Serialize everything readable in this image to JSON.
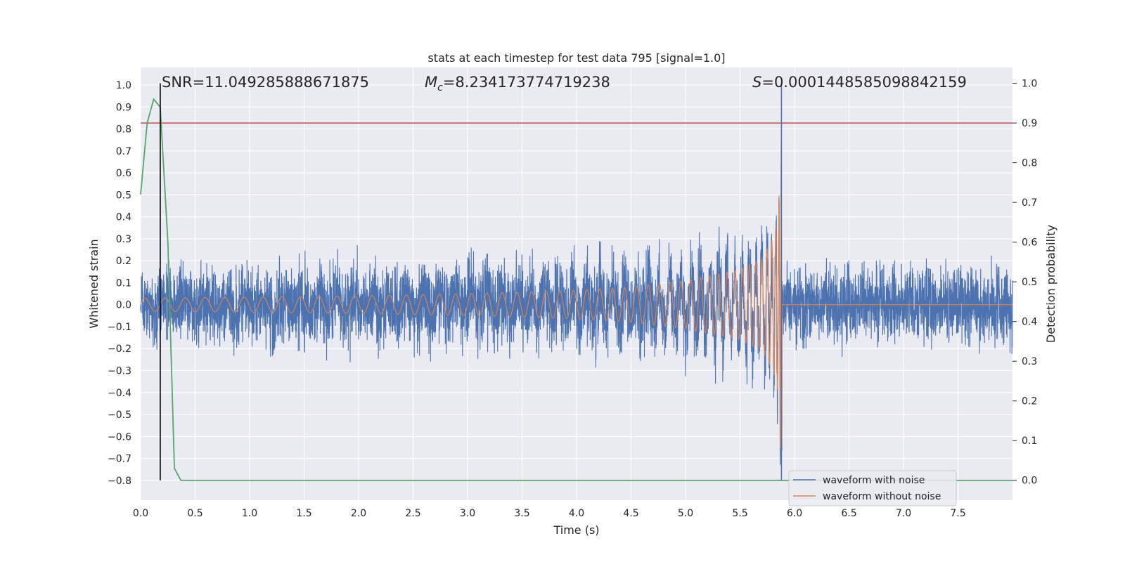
{
  "chart_data": {
    "type": "line",
    "title": "stats at each timestep for test data 795 [signal=1.0]",
    "xlabel": "Time (s)",
    "ylabel_left": "Whitened strain",
    "ylabel_right": "Detection probability",
    "xlim": [
      0.0,
      8.0
    ],
    "ylim_left": [
      -0.89,
      1.08
    ],
    "ylim_right": [
      -0.05,
      1.04
    ],
    "x_ticks": [
      "0.0",
      "0.5",
      "1.0",
      "1.5",
      "2.0",
      "2.5",
      "3.0",
      "3.5",
      "4.0",
      "4.5",
      "5.0",
      "5.5",
      "6.0",
      "6.5",
      "7.0",
      "7.5"
    ],
    "y_left_ticks": [
      "1.0",
      "0.9",
      "0.8",
      "0.7",
      "0.6",
      "0.5",
      "0.4",
      "0.3",
      "0.2",
      "0.1",
      "0.0",
      "−0.1",
      "−0.2",
      "−0.3",
      "−0.4",
      "−0.5",
      "−0.6",
      "−0.7",
      "−0.8"
    ],
    "y_right_ticks": [
      "1.0",
      "0.9",
      "0.8",
      "0.7",
      "0.6",
      "0.5",
      "0.4",
      "0.3",
      "0.2",
      "0.1",
      "0.0"
    ],
    "grid": true,
    "legend_position": "bottom-right",
    "annotations": {
      "snr": "SNR=11.049285888671875",
      "mc_symbol": "M",
      "mc_sub": "c",
      "mc_value": "=8.234173774719238",
      "s_symbol": "S",
      "s_value": "=0.0001448585098842159"
    },
    "series": [
      {
        "name": "waveform with noise",
        "axis": "left",
        "color": "#4c72b0",
        "description_envelope": {
          "x": [
            0.0,
            1.0,
            2.0,
            3.0,
            4.0,
            5.0,
            5.5,
            5.8,
            5.88,
            5.9,
            6.5,
            7.0,
            8.0
          ],
          "noise_band": [
            0.24,
            0.25,
            0.26,
            0.27,
            0.28,
            0.29,
            0.3,
            0.3,
            0.3,
            0.25,
            0.25,
            0.25,
            0.25
          ],
          "signal_amplitude": [
            0.03,
            0.035,
            0.04,
            0.05,
            0.07,
            0.11,
            0.16,
            0.3,
            0.8,
            0.0,
            0.0,
            0.0,
            0.0
          ]
        }
      },
      {
        "name": "waveform without noise",
        "axis": "left",
        "color": "#dd8452",
        "envelope": {
          "x": [
            0.0,
            1.0,
            2.0,
            3.0,
            4.0,
            4.5,
            5.0,
            5.5,
            5.7,
            5.8,
            5.85,
            5.88,
            5.9,
            8.0
          ],
          "amplitude": [
            0.03,
            0.035,
            0.04,
            0.05,
            0.065,
            0.08,
            0.11,
            0.16,
            0.21,
            0.3,
            0.4,
            0.8,
            0.0,
            0.0
          ]
        }
      },
      {
        "name": "Detection probability",
        "axis": "right",
        "color": "#55a868",
        "x": [
          0.0,
          0.06,
          0.12,
          0.18,
          0.25,
          0.31,
          0.37,
          0.5,
          8.0
        ],
        "y": [
          0.72,
          0.9,
          0.96,
          0.94,
          0.6,
          0.03,
          0.0,
          0.0,
          0.0
        ]
      }
    ],
    "threshold": {
      "axis": "right",
      "value": 0.9,
      "color": "#c44e52"
    },
    "markers": [
      {
        "x": 0.18,
        "axis": "right",
        "from": 0.0,
        "to": 1.0,
        "color": "#000000"
      },
      {
        "x": 5.88,
        "axis": "right",
        "from": 0.0,
        "to": 1.0,
        "color": "#4c72b0"
      }
    ]
  }
}
